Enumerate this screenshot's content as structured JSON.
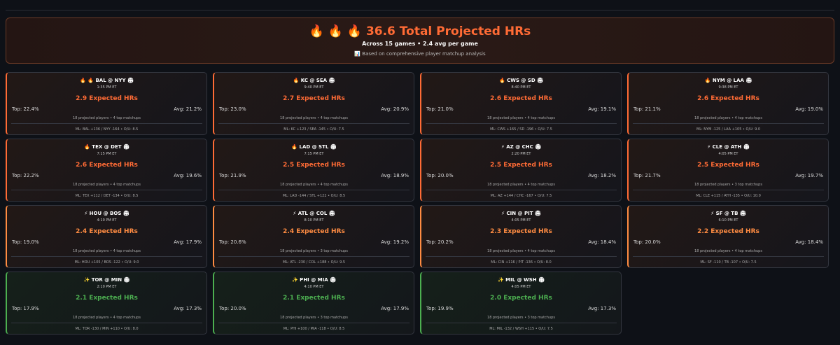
{
  "header": {
    "title": "🔥 🔥 🔥  36.6 Total Projected HRs",
    "subtitle": "Across 15 games • 2.4 avg per game",
    "note": "📊 Based on comprehensive player matchup analysis"
  },
  "games": [
    {
      "matchup": "🔥 🔥  BAL @ NYY 🏟",
      "time": "1:35 PM ET",
      "expected": "2.9 Expected HRs",
      "top": "Top: 22.4%",
      "avg": "Avg: 21.2%",
      "players": "18 projected players • 4 top matchups",
      "odds": "ML: BAL +136 / NYY -164 • O/U: 8.5",
      "color": "#ff6b35"
    },
    {
      "matchup": "🔥  KC @ SEA 🏟",
      "time": "9:40 PM ET",
      "expected": "2.7 Expected HRs",
      "top": "Top: 23.0%",
      "avg": "Avg: 20.9%",
      "players": "18 projected players • 4 top matchups",
      "odds": "ML: KC +123 / SEA -145 • O/U: 7.5",
      "color": "#ff6b35"
    },
    {
      "matchup": "🔥  CWS @ SD 🏟",
      "time": "8:40 PM ET",
      "expected": "2.6 Expected HRs",
      "top": "Top: 21.0%",
      "avg": "Avg: 19.1%",
      "players": "18 projected players • 4 top matchups",
      "odds": "ML: CWS +165 / SD -196 • O/U: 7.5",
      "color": "#ff6b35"
    },
    {
      "matchup": "🔥  NYM @ LAA 🏟",
      "time": "9:38 PM ET",
      "expected": "2.6 Expected HRs",
      "top": "Top: 21.1%",
      "avg": "Avg: 19.0%",
      "players": "18 projected players • 4 top matchups",
      "odds": "ML: NYM -125 / LAA +105 • O/U: 9.0",
      "color": "#ff6b35"
    },
    {
      "matchup": "🔥  TEX @ DET 🏟",
      "time": "7:15 PM ET",
      "expected": "2.6 Expected HRs",
      "top": "Top: 22.2%",
      "avg": "Avg: 19.6%",
      "players": "18 projected players • 4 top matchups",
      "odds": "ML: TEX +112 / DET -134 • O/U: 8.5",
      "color": "#ff6b35"
    },
    {
      "matchup": "🔥  LAD @ STL 🏟",
      "time": "7:15 PM ET",
      "expected": "2.5 Expected HRs",
      "top": "Top: 21.9%",
      "avg": "Avg: 18.9%",
      "players": "18 projected players • 4 top matchups",
      "odds": "ML: LAD -144 / STL +122 • O/U: 8.5",
      "color": "#ff6b35"
    },
    {
      "matchup": "⚡  AZ @ CHC 🏟",
      "time": "2:20 PM ET",
      "expected": "2.5 Expected HRs",
      "top": "Top: 20.0%",
      "avg": "Avg: 18.2%",
      "players": "18 projected players • 4 top matchups",
      "odds": "ML: AZ +144 / CHC -167 • O/U: 7.5",
      "color": "#ff6b35"
    },
    {
      "matchup": "⚡  CLE @ ATH 🏟",
      "time": "4:05 PM ET",
      "expected": "2.5 Expected HRs",
      "top": "Top: 21.7%",
      "avg": "Avg: 19.7%",
      "players": "18 projected players • 3 top matchups",
      "odds": "ML: CLE +115 / ATH -135 • O/U: 10.0",
      "color": "#ff6b35"
    },
    {
      "matchup": "⚡  HOU @ BOS 🏟",
      "time": "4:10 PM ET",
      "expected": "2.4 Expected HRs",
      "top": "Top: 19.0%",
      "avg": "Avg: 17.9%",
      "players": "18 projected players • 4 top matchups",
      "odds": "ML: HOU +105 / BOS -122 • O/U: 9.0",
      "color": "#ff8c42"
    },
    {
      "matchup": "⚡  ATL @ COL 🏟",
      "time": "8:10 PM ET",
      "expected": "2.4 Expected HRs",
      "top": "Top: 20.6%",
      "avg": "Avg: 19.2%",
      "players": "18 projected players • 3 top matchups",
      "odds": "ML: ATL -230 / COL +188 • O/U: 9.5",
      "color": "#ff8c42"
    },
    {
      "matchup": "⚡  CIN @ PIT 🏟",
      "time": "4:05 PM ET",
      "expected": "2.3 Expected HRs",
      "top": "Top: 20.2%",
      "avg": "Avg: 18.4%",
      "players": "18 projected players • 4 top matchups",
      "odds": "ML: CIN +116 / PIT -136 • O/U: 8.0",
      "color": "#ff8c42"
    },
    {
      "matchup": "⚡  SF @ TB 🏟",
      "time": "6:10 PM ET",
      "expected": "2.2 Expected HRs",
      "top": "Top: 20.0%",
      "avg": "Avg: 18.4%",
      "players": "18 projected players • 4 top matchups",
      "odds": "ML: SF -110 / TB -107 • O/U: 7.5",
      "color": "#ff8c42"
    },
    {
      "matchup": "✨  TOR @ MIN 🏟",
      "time": "2:10 PM ET",
      "expected": "2.1 Expected HRs",
      "top": "Top: 17.9%",
      "avg": "Avg: 17.3%",
      "players": "18 projected players • 4 top matchups",
      "odds": "ML: TOR -130 / MIN +110 • O/U: 8.0",
      "color": "#4caf50"
    },
    {
      "matchup": "✨  PHI @ MIA 🏟",
      "time": "4:10 PM ET",
      "expected": "2.1 Expected HRs",
      "top": "Top: 20.0%",
      "avg": "Avg: 17.9%",
      "players": "18 projected players • 3 top matchups",
      "odds": "ML: PHI +100 / MIA -118 • O/U: 8.5",
      "color": "#4caf50"
    },
    {
      "matchup": "✨  MIL @ WSH 🏟",
      "time": "4:05 PM ET",
      "expected": "2.0 Expected HRs",
      "top": "Top: 19.9%",
      "avg": "Avg: 17.3%",
      "players": "18 projected players • 3 top matchups",
      "odds": "ML: MIL -132 / WSH +115 • O/U: 7.5",
      "color": "#4caf50"
    }
  ]
}
